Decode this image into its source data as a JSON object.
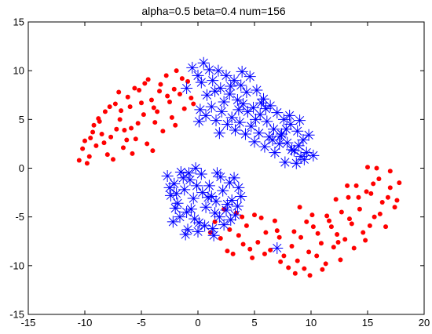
{
  "chart_data": {
    "type": "scatter",
    "title": "alpha=0.5 beta=0.4 num=156",
    "xlabel": "",
    "ylabel": "",
    "xlim": [
      -15,
      20
    ],
    "ylim": [
      -15,
      15
    ],
    "xticks": [
      "-15",
      "-10",
      "-5",
      "0",
      "5",
      "10",
      "15",
      "20"
    ],
    "yticks": [
      "15",
      "10",
      "5",
      "0",
      "-5",
      "-10",
      "-15"
    ],
    "grid": false,
    "series": [
      {
        "marker": "dot",
        "color": "#ff0000",
        "points": [
          [
            -10.5,
            0.8
          ],
          [
            -10.0,
            2.8
          ],
          [
            -9.6,
            1.2
          ],
          [
            -9.3,
            3.7
          ],
          [
            -9.0,
            2.3
          ],
          [
            -8.7,
            4.8
          ],
          [
            -8.2,
            5.8
          ],
          [
            -8.0,
            1.4
          ],
          [
            -7.7,
            3.2
          ],
          [
            -7.3,
            6.6
          ],
          [
            -6.9,
            5.0
          ],
          [
            -6.6,
            2.1
          ],
          [
            -6.2,
            7.3
          ],
          [
            -5.9,
            4.1
          ],
          [
            -5.5,
            3.0
          ],
          [
            -5.2,
            8.0
          ],
          [
            -4.8,
            5.5
          ],
          [
            -4.5,
            2.5
          ],
          [
            -4.1,
            7.0
          ],
          [
            -3.8,
            4.7
          ],
          [
            -3.3,
            8.6
          ],
          [
            -2.8,
            9.5
          ],
          [
            -2.5,
            6.8
          ],
          [
            -2.1,
            8.1
          ],
          [
            -1.6,
            7.6
          ],
          [
            -1.2,
            6.1
          ],
          [
            -0.6,
            7.2
          ],
          [
            -7.8,
            6.3
          ],
          [
            -9.8,
            0.5
          ],
          [
            -10.2,
            2.0
          ],
          [
            -8.5,
            3.5
          ],
          [
            -6.0,
            6.3
          ],
          [
            -3.6,
            5.8
          ],
          [
            -5.6,
            8.2
          ],
          [
            -4.4,
            9.1
          ],
          [
            -7.0,
            7.8
          ],
          [
            -9.2,
            4.4
          ],
          [
            -3.1,
            3.8
          ],
          [
            -6.5,
            3.9
          ],
          [
            -5.0,
            6.7
          ],
          [
            -1.9,
            10.0
          ],
          [
            -2.3,
            5.2
          ],
          [
            -0.9,
            8.9
          ],
          [
            -8.3,
            2.6
          ],
          [
            -7.5,
            0.9
          ],
          [
            -4.0,
            1.8
          ],
          [
            -6.8,
            5.9
          ],
          [
            -9.5,
            3.1
          ],
          [
            -2.7,
            7.4
          ],
          [
            -5.8,
            1.5
          ],
          [
            -3.9,
            6.2
          ],
          [
            -1.4,
            9.2
          ],
          [
            -4.7,
            8.7
          ],
          [
            -8.8,
            5.1
          ],
          [
            -6.3,
            2.9
          ],
          [
            -2.0,
            4.4
          ],
          [
            -5.3,
            4.6
          ],
          [
            -7.2,
            4.0
          ],
          [
            -3.4,
            7.9
          ],
          [
            -0.4,
            6.6
          ],
          [
            1.5,
            -5.5
          ],
          [
            2.0,
            -7.2
          ],
          [
            2.8,
            -6.3
          ],
          [
            3.1,
            -8.8
          ],
          [
            3.6,
            -6.9
          ],
          [
            4.0,
            -7.8
          ],
          [
            4.3,
            -5.9
          ],
          [
            4.8,
            -9.2
          ],
          [
            5.3,
            -7.6
          ],
          [
            5.6,
            -5.1
          ],
          [
            6.0,
            -6.6
          ],
          [
            6.4,
            -8.4
          ],
          [
            7.2,
            -7.1
          ],
          [
            7.6,
            -9.0
          ],
          [
            8.0,
            -10.2
          ],
          [
            8.3,
            -8.0
          ],
          [
            8.8,
            -9.5
          ],
          [
            9.1,
            -7.1
          ],
          [
            9.4,
            -10.3
          ],
          [
            9.8,
            -8.6
          ],
          [
            10.2,
            -6.0
          ],
          [
            10.5,
            -9.0
          ],
          [
            10.9,
            -7.7
          ],
          [
            11.3,
            -9.8
          ],
          [
            11.6,
            -5.4
          ],
          [
            12.0,
            -8.1
          ],
          [
            12.3,
            -6.8
          ],
          [
            12.7,
            -4.5
          ],
          [
            13.0,
            -7.3
          ],
          [
            13.3,
            -3.0
          ],
          [
            13.6,
            -5.7
          ],
          [
            14.0,
            -1.8
          ],
          [
            14.3,
            -4.2
          ],
          [
            14.6,
            -6.6
          ],
          [
            15.0,
            0.1
          ],
          [
            15.3,
            -2.6
          ],
          [
            15.6,
            -5.0
          ],
          [
            16.0,
            -1.1
          ],
          [
            16.3,
            -3.5
          ],
          [
            16.6,
            -6.0
          ],
          [
            17.0,
            -2.0
          ],
          [
            17.4,
            -4.0
          ],
          [
            17.8,
            -1.5
          ],
          [
            17.0,
            -0.3
          ],
          [
            15.8,
            0.0
          ],
          [
            14.8,
            -7.4
          ],
          [
            13.8,
            -8.2
          ],
          [
            12.6,
            -9.4
          ],
          [
            11.0,
            -10.4
          ],
          [
            9.9,
            -11.0
          ],
          [
            8.6,
            -10.8
          ],
          [
            7.3,
            -9.6
          ],
          [
            6.8,
            -5.4
          ],
          [
            5.0,
            -4.8
          ],
          [
            3.4,
            -4.6
          ],
          [
            2.3,
            -4.2
          ],
          [
            1.1,
            -6.6
          ],
          [
            16.8,
            -3.0
          ],
          [
            15.5,
            -1.6
          ],
          [
            14.2,
            -3.0
          ],
          [
            13.4,
            -5.2
          ],
          [
            12.4,
            -7.6
          ],
          [
            11.4,
            -4.9
          ],
          [
            10.6,
            -6.7
          ],
          [
            9.6,
            -5.5
          ],
          [
            8.5,
            -6.5
          ],
          [
            7.0,
            -6.4
          ],
          [
            5.9,
            -8.8
          ],
          [
            4.6,
            -8.3
          ],
          [
            3.9,
            -5.0
          ],
          [
            2.6,
            -8.5
          ],
          [
            16.1,
            -4.7
          ],
          [
            14.9,
            -2.4
          ],
          [
            13.2,
            -1.8
          ],
          [
            12.2,
            -3.2
          ],
          [
            11.8,
            -6.0
          ],
          [
            10.1,
            -4.8
          ],
          [
            9.0,
            -4.0
          ],
          [
            15.2,
            -5.9
          ],
          [
            17.6,
            -3.3
          ]
        ]
      },
      {
        "marker": "asterisk",
        "color": "#0000ff",
        "points": [
          [
            -0.5,
            10.3
          ],
          [
            -1.0,
            8.2
          ],
          [
            0.0,
            9.5
          ],
          [
            0.5,
            10.8
          ],
          [
            0.3,
            8.8
          ],
          [
            1.0,
            10.1
          ],
          [
            1.3,
            9.0
          ],
          [
            1.8,
            10.0
          ],
          [
            2.0,
            8.2
          ],
          [
            2.5,
            9.5
          ],
          [
            2.8,
            7.6
          ],
          [
            3.2,
            9.0
          ],
          [
            3.5,
            7.0
          ],
          [
            3.8,
            8.5
          ],
          [
            4.0,
            6.6
          ],
          [
            4.3,
            7.8
          ],
          [
            4.6,
            9.4
          ],
          [
            4.9,
            6.2
          ],
          [
            5.2,
            8.0
          ],
          [
            5.5,
            5.5
          ],
          [
            5.8,
            7.1
          ],
          [
            6.1,
            4.8
          ],
          [
            6.4,
            6.4
          ],
          [
            6.7,
            4.0
          ],
          [
            7.0,
            5.7
          ],
          [
            7.3,
            3.3
          ],
          [
            7.6,
            5.0
          ],
          [
            7.9,
            2.6
          ],
          [
            8.2,
            4.5
          ],
          [
            8.5,
            1.8
          ],
          [
            8.8,
            3.8
          ],
          [
            9.1,
            1.2
          ],
          [
            9.3,
            2.9
          ],
          [
            9.6,
            1.6
          ],
          [
            9.8,
            3.4
          ],
          [
            10.2,
            1.3
          ],
          [
            0.2,
            6.0
          ],
          [
            0.7,
            5.4
          ],
          [
            1.2,
            6.3
          ],
          [
            1.6,
            4.9
          ],
          [
            2.1,
            5.8
          ],
          [
            2.6,
            4.5
          ],
          [
            3.0,
            5.2
          ],
          [
            3.3,
            3.9
          ],
          [
            3.7,
            4.7
          ],
          [
            4.2,
            3.5
          ],
          [
            4.7,
            4.3
          ],
          [
            5.0,
            2.7
          ],
          [
            5.4,
            3.6
          ],
          [
            5.9,
            2.2
          ],
          [
            6.3,
            3.2
          ],
          [
            6.8,
            1.6
          ],
          [
            7.2,
            2.5
          ],
          [
            7.7,
            0.6
          ],
          [
            8.3,
            1.9
          ],
          [
            8.7,
            0.5
          ],
          [
            9.4,
            0.9
          ],
          [
            0.8,
            7.5
          ],
          [
            2.3,
            6.8
          ],
          [
            3.6,
            6.0
          ],
          [
            5.1,
            5.0
          ],
          [
            6.6,
            2.9
          ],
          [
            7.8,
            4.0
          ],
          [
            8.9,
            2.3
          ],
          [
            1.5,
            7.9
          ],
          [
            4.4,
            5.8
          ],
          [
            6.0,
            6.1
          ],
          [
            7.4,
            3.5
          ],
          [
            8.1,
            5.4
          ],
          [
            9.0,
            4.9
          ],
          [
            3.9,
            9.9
          ],
          [
            2.9,
            8.4
          ],
          [
            5.6,
            6.7
          ],
          [
            0.1,
            4.8
          ],
          [
            1.9,
            3.6
          ],
          [
            -2.7,
            -0.8
          ],
          [
            -2.4,
            -2.8
          ],
          [
            -2.1,
            -1.6
          ],
          [
            -1.8,
            -3.6
          ],
          [
            -1.5,
            -0.4
          ],
          [
            -1.2,
            -2.2
          ],
          [
            -1.0,
            -4.5
          ],
          [
            -0.7,
            -1.2
          ],
          [
            -0.4,
            -3.1
          ],
          [
            -0.2,
            0.0
          ],
          [
            0.1,
            -5.6
          ],
          [
            0.4,
            -2.5
          ],
          [
            0.7,
            -4.0
          ],
          [
            1.0,
            -1.8
          ],
          [
            1.3,
            -6.2
          ],
          [
            1.6,
            -3.4
          ],
          [
            1.9,
            -5.0
          ],
          [
            2.2,
            -2.3
          ],
          [
            2.5,
            -4.3
          ],
          [
            2.8,
            -1.5
          ],
          [
            3.0,
            -3.3
          ],
          [
            3.3,
            -4.8
          ],
          [
            3.6,
            -2.0
          ],
          [
            -2.0,
            -4.1
          ],
          [
            -1.6,
            -5.0
          ],
          [
            -0.9,
            -6.3
          ],
          [
            -0.3,
            -5.2
          ],
          [
            0.3,
            -0.6
          ],
          [
            0.9,
            -3.0
          ],
          [
            1.5,
            -4.6
          ],
          [
            2.0,
            -0.9
          ],
          [
            2.6,
            -3.7
          ],
          [
            3.2,
            -1.0
          ],
          [
            -2.5,
            -2.0
          ],
          [
            -1.3,
            -1.0
          ],
          [
            -0.6,
            -4.2
          ],
          [
            0.6,
            -5.9
          ],
          [
            1.2,
            -2.9
          ],
          [
            2.3,
            -5.8
          ],
          [
            3.5,
            -3.9
          ],
          [
            -1.9,
            -2.6
          ],
          [
            -0.1,
            -1.8
          ],
          [
            1.7,
            -0.5
          ],
          [
            2.9,
            -5.3
          ],
          [
            -1.1,
            -6.8
          ],
          [
            0.0,
            -6.5
          ],
          [
            7.0,
            -8.2
          ],
          [
            -2.2,
            -5.5
          ],
          [
            1.4,
            -6.9
          ],
          [
            3.8,
            -2.9
          ],
          [
            -0.8,
            -0.5
          ]
        ]
      }
    ]
  }
}
